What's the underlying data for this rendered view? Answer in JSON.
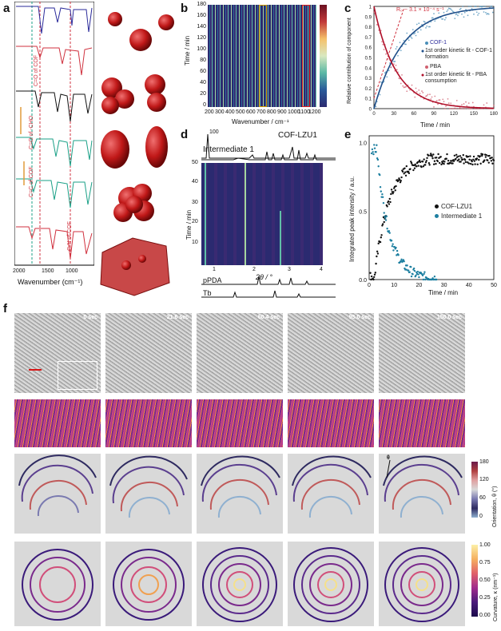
{
  "panel_labels": {
    "a": "a",
    "b": "b",
    "c": "c",
    "d": "d",
    "e": "e",
    "f": "f"
  },
  "panel_a": {
    "xlabel": "Wavenumber (cm⁻¹)",
    "ticks": [
      "2000",
      "1500",
      "1000"
    ],
    "annotations": [
      "C=O of COF",
      "C=O of -CHO",
      "C=C of COF",
      "C-N of COF"
    ],
    "colors": {
      "blue": "#2a2a9a",
      "red": "#d0323f",
      "black": "#111111",
      "green": "#1aa087"
    }
  },
  "panel_b": {
    "ylabel": "Time / min",
    "xlabel": "Wavenumber / cm⁻¹",
    "yticks": [
      "0",
      "20",
      "40",
      "60",
      "80",
      "100",
      "120",
      "140",
      "160",
      "180"
    ],
    "xticks": [
      "200",
      "300",
      "400",
      "500",
      "600",
      "700",
      "800",
      "900",
      "1000",
      "1100",
      "1200"
    ]
  },
  "chart_c": {
    "type": "scatter",
    "title": "",
    "annotation": "R₀ ~ 3.1 × 10⁻⁴ s⁻¹",
    "xlabel": "Time / min",
    "ylabel": "Relative contribution of component",
    "xlim": [
      0,
      180
    ],
    "ylim": [
      0,
      1
    ],
    "xticks": [
      "0",
      "30",
      "60",
      "90",
      "120",
      "150",
      "180"
    ],
    "yticks": [
      "0",
      "0.1",
      "0.2",
      "0.3",
      "0.4",
      "0.5",
      "0.6",
      "0.7",
      "0.8",
      "0.9",
      "1"
    ],
    "legend": [
      "COF-1",
      "1st order kinetic fit - COF-1 formation",
      "PBA",
      "1st order kinetic fit - PBA consumption"
    ],
    "series": [
      {
        "name": "COF-1",
        "color": "#4a8fb8",
        "k": 0.023,
        "kind": "rise"
      },
      {
        "name": "PBA",
        "color": "#d06070",
        "k": 0.03,
        "kind": "decay"
      }
    ]
  },
  "panel_d": {
    "top_label": "COF-LZU1",
    "intermediate": "Intermediate 1",
    "scale": "100",
    "ylabel": "Time / min",
    "xlabel": "2θ / °",
    "yticks": [
      "10",
      "20",
      "30",
      "40",
      "50"
    ],
    "xticks": [
      "1",
      "2",
      "3",
      "4"
    ],
    "bottom_labels": [
      "pPDA",
      "Tb"
    ]
  },
  "chart_e": {
    "type": "scatter",
    "xlabel": "Time / min",
    "ylabel": "Integrated peak intensity / a.u.",
    "xlim": [
      0,
      50
    ],
    "ylim": [
      0,
      1.05
    ],
    "xticks": [
      "0",
      "10",
      "20",
      "30",
      "40",
      "50"
    ],
    "yticks": [
      "0.0",
      "0.5",
      "1.0"
    ],
    "legend": [
      "COF-LZU1",
      "Intermediate 1"
    ],
    "series": [
      {
        "name": "COF-LZU1",
        "color": "#111111"
      },
      {
        "name": "Intermediate 1",
        "color": "#1d7fa0"
      }
    ]
  },
  "panel_f": {
    "times": [
      "0 sec",
      "21.6 sec",
      "60.4 sec",
      "95.0 sec",
      "150.0 sec"
    ],
    "orient_bar": {
      "title": "Orientation, θ (°)",
      "ticks": [
        "180",
        "120",
        "60",
        "0"
      ]
    },
    "curv_bar": {
      "title": "Curvature, κ (nm⁻¹)",
      "ticks": [
        "1.00",
        "0.75",
        "0.50",
        "0.25",
        "0.00"
      ]
    },
    "theta": "θ"
  }
}
